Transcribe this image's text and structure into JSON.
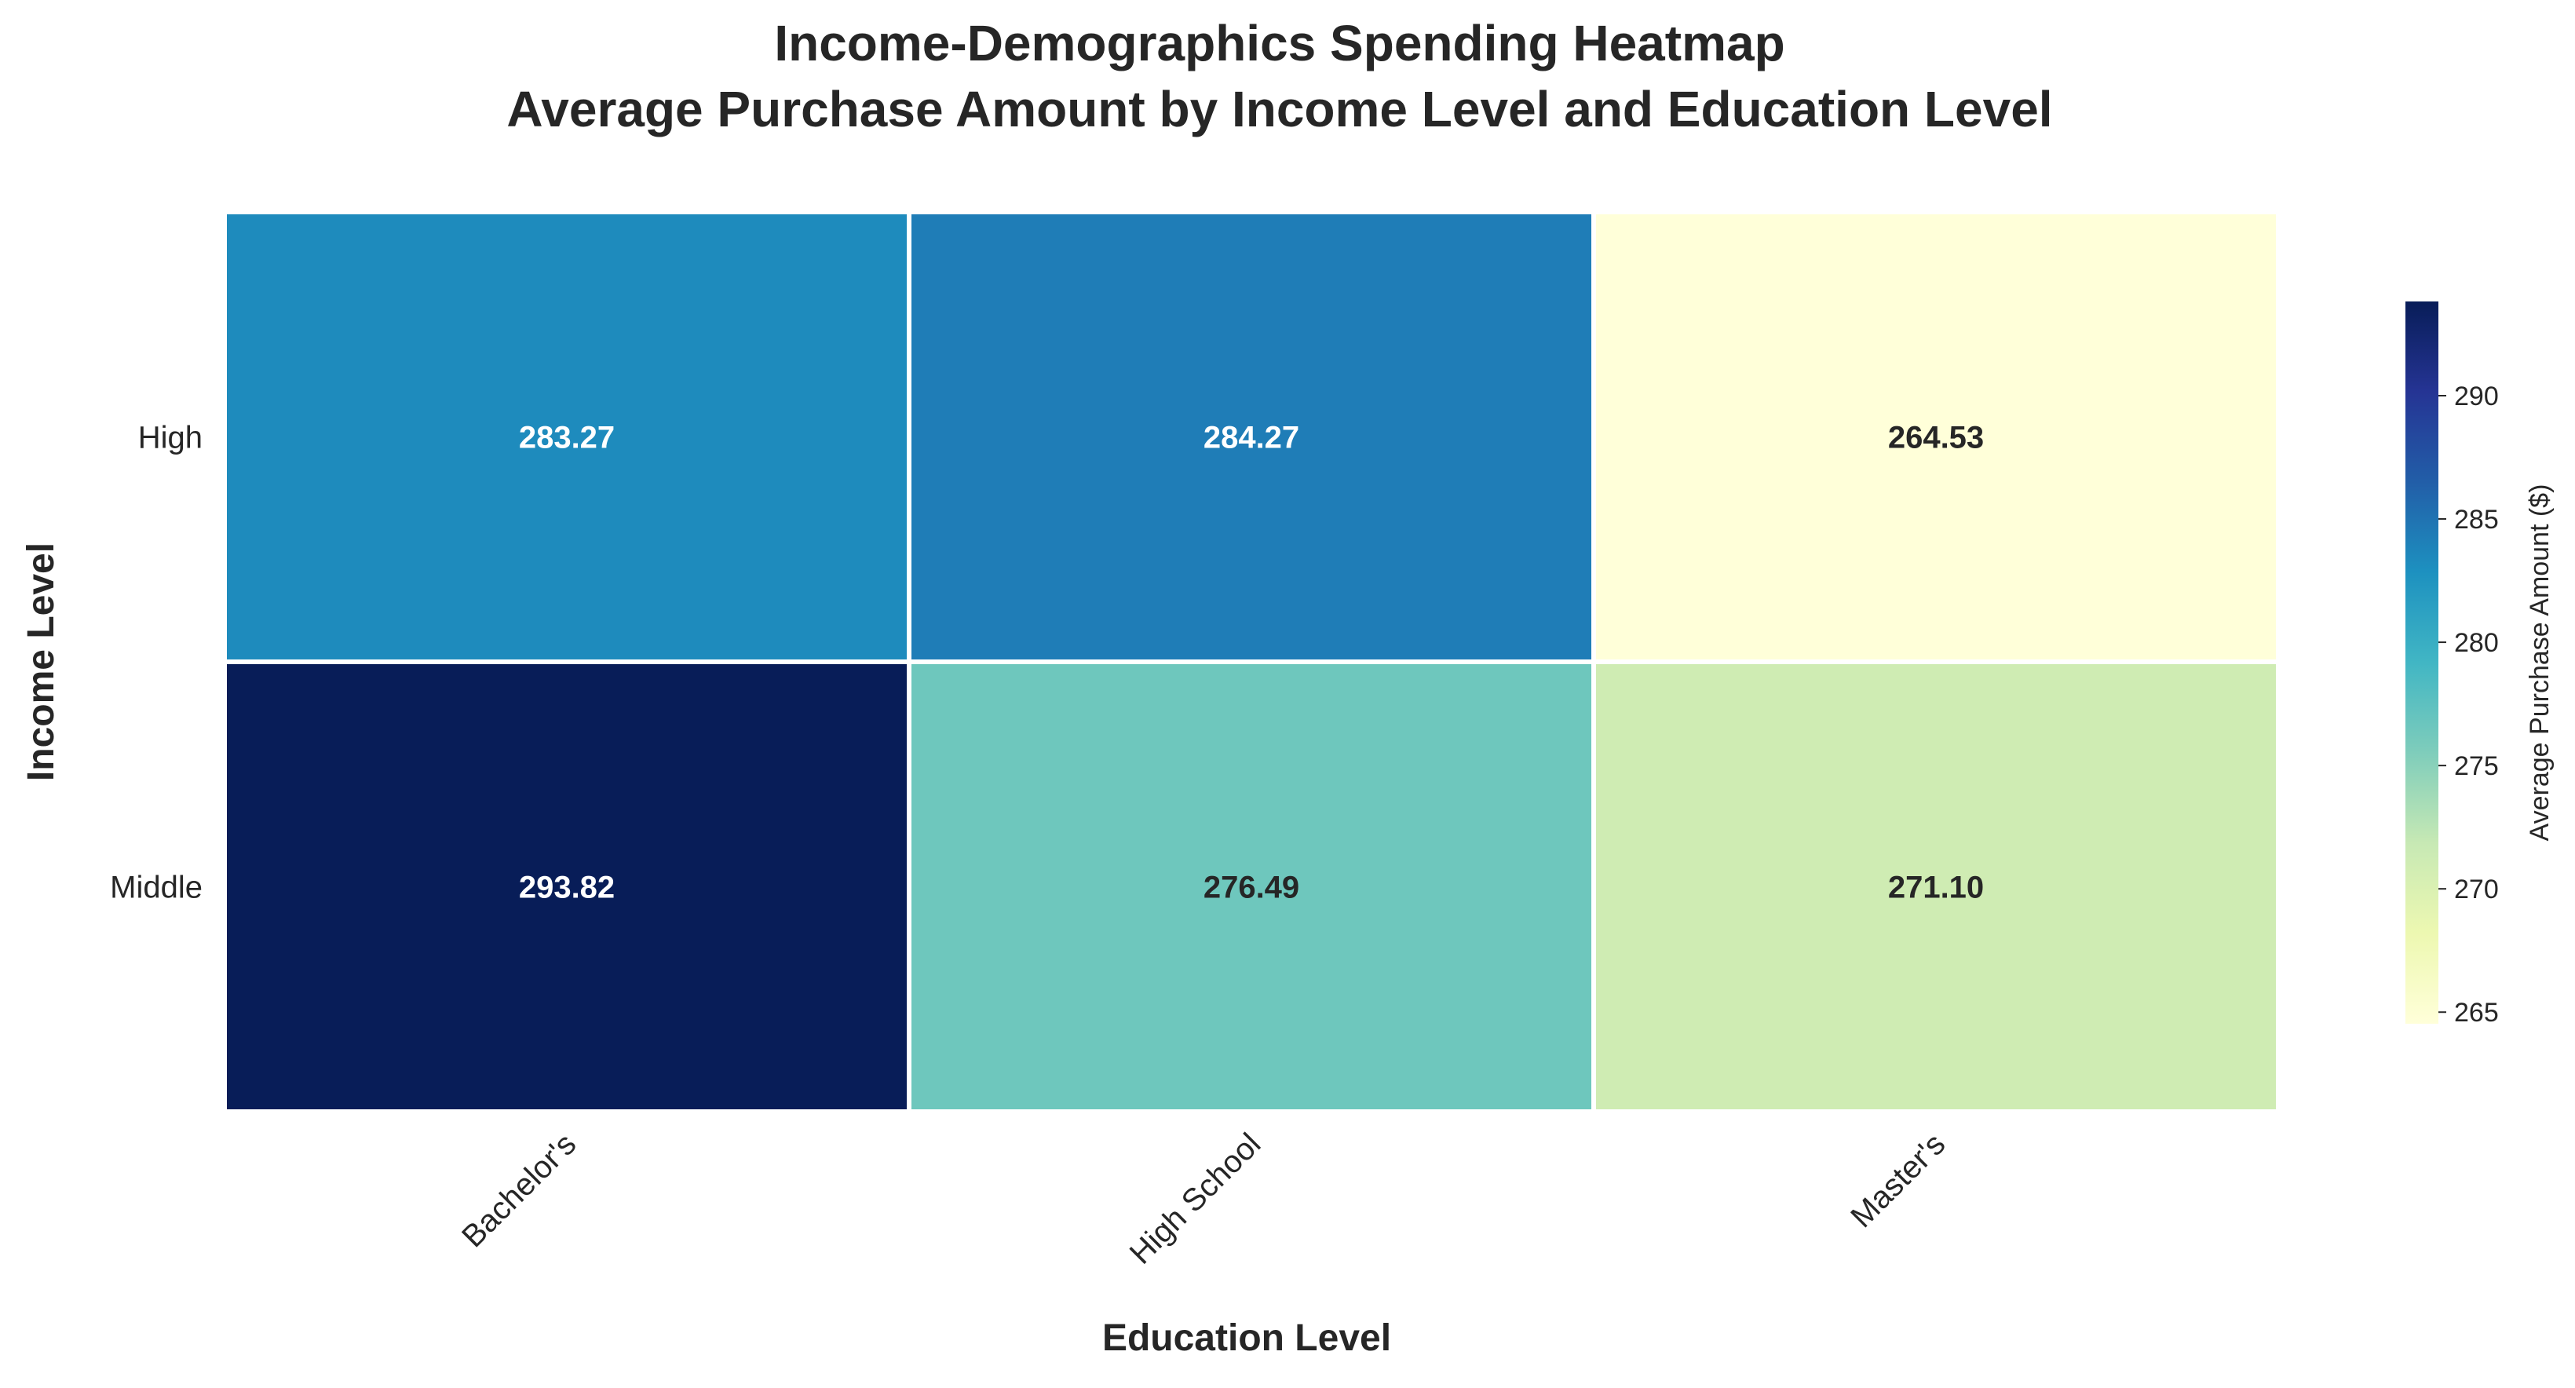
{
  "chart_data": {
    "type": "heatmap",
    "title_line1": "Income-Demographics Spending Heatmap",
    "title_line2": "Average Purchase Amount by Income Level and Education Level",
    "xlabel": "Education Level",
    "ylabel": "Income Level",
    "x_categories": [
      "Bachelor's",
      "High School",
      "Master's"
    ],
    "y_categories": [
      "High",
      "Middle"
    ],
    "values": [
      [
        283.27,
        284.27,
        264.53
      ],
      [
        293.82,
        276.49,
        271.1
      ]
    ],
    "value_labels": [
      [
        "283.27",
        "284.27",
        "264.53"
      ],
      [
        "293.82",
        "276.49",
        "271.10"
      ]
    ],
    "colorbar": {
      "label": "Average Purchase Amount ($)",
      "colormap": "YlGnBu",
      "range": [
        264.53,
        293.82
      ],
      "ticks": [
        265,
        270,
        275,
        280,
        285,
        290
      ],
      "tick_labels": [
        "265",
        "270",
        "275",
        "280",
        "285",
        "290"
      ]
    }
  }
}
